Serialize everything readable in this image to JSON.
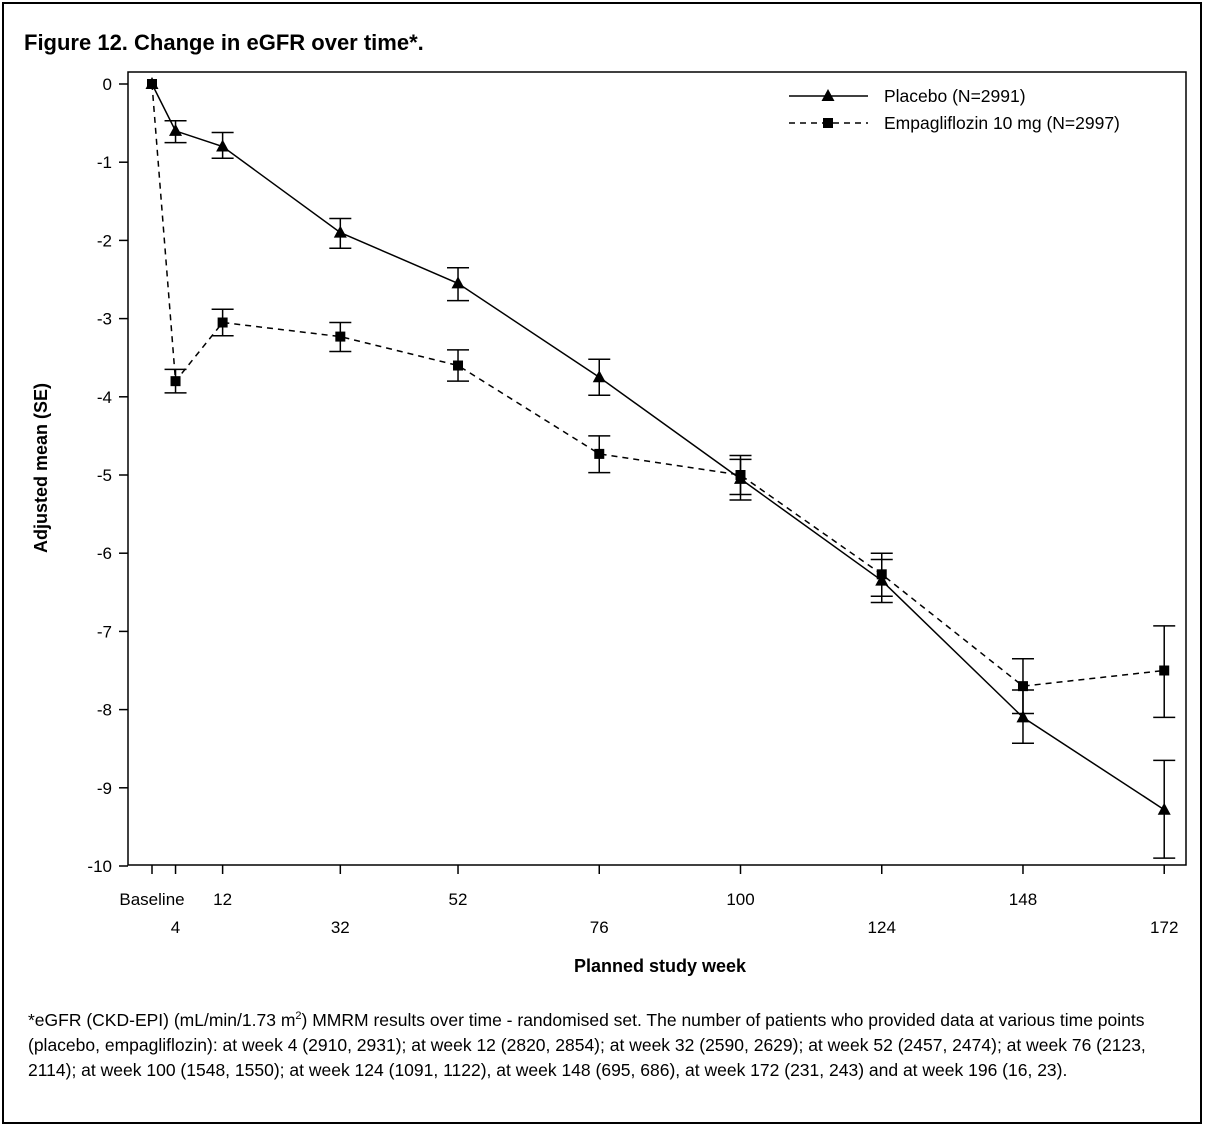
{
  "title": "Figure 12. Change in eGFR over time*.",
  "footnote": {
    "part1": "*eGFR (CKD-EPI) (mL/min/1.73 m",
    "sup": "2",
    "part2": ") MMRM results over time - randomised set. The number of patients who provided data at various time points (placebo, empagliflozin): at week 4 (2910, 2931); at week 12 (2820, 2854); at week 32 (2590, 2629); at week 52 (2457, 2474); at week 76 (2123, 2114); at week 100 (1548, 1550); at week 124 (1091, 1122), at week 148 (695, 686), at week 172 (231, 243) and at week 196 (16, 23)."
  },
  "chart_data": {
    "type": "line",
    "title": "Figure 12. Change in eGFR over time*.",
    "xlabel": "Planned study week",
    "ylabel": "Adjusted mean (SE)",
    "ylim": [
      -10,
      0
    ],
    "yticks": [
      "0",
      "-1",
      "-2",
      "-3",
      "-4",
      "-5",
      "-6",
      "-7",
      "-8",
      "-9",
      "-10"
    ],
    "xticks": [
      {
        "value": 0,
        "label": "Baseline",
        "row": 1
      },
      {
        "value": 4,
        "label": "4",
        "row": 2
      },
      {
        "value": 12,
        "label": "12",
        "row": 1
      },
      {
        "value": 32,
        "label": "32",
        "row": 2
      },
      {
        "value": 52,
        "label": "52",
        "row": 1
      },
      {
        "value": 76,
        "label": "76",
        "row": 2
      },
      {
        "value": 100,
        "label": "100",
        "row": 1
      },
      {
        "value": 124,
        "label": "124",
        "row": 2
      },
      {
        "value": 148,
        "label": "148",
        "row": 1
      },
      {
        "value": 172,
        "label": "172",
        "row": 2
      }
    ],
    "grid": false,
    "legend": "top-right",
    "series": [
      {
        "name": "Placebo (N=2991)",
        "marker": "triangle",
        "line": "solid",
        "points": [
          {
            "x": 0,
            "y": 0,
            "lo": 0,
            "hi": 0
          },
          {
            "x": 4,
            "y": -0.6,
            "lo": -0.75,
            "hi": -0.47
          },
          {
            "x": 12,
            "y": -0.8,
            "lo": -0.95,
            "hi": -0.62
          },
          {
            "x": 32,
            "y": -1.9,
            "lo": -2.1,
            "hi": -1.72
          },
          {
            "x": 52,
            "y": -2.55,
            "lo": -2.77,
            "hi": -2.35
          },
          {
            "x": 76,
            "y": -3.75,
            "lo": -3.98,
            "hi": -3.52
          },
          {
            "x": 100,
            "y": -5.05,
            "lo": -5.32,
            "hi": -4.8
          },
          {
            "x": 124,
            "y": -6.35,
            "lo": -6.63,
            "hi": -6.08
          },
          {
            "x": 148,
            "y": -8.1,
            "lo": -8.43,
            "hi": -7.75
          },
          {
            "x": 172,
            "y": -9.28,
            "lo": -9.9,
            "hi": -8.65
          }
        ]
      },
      {
        "name": "Empagliflozin 10 mg (N=2997)",
        "marker": "square",
        "line": "dashed",
        "points": [
          {
            "x": 0,
            "y": 0,
            "lo": 0,
            "hi": 0
          },
          {
            "x": 4,
            "y": -3.8,
            "lo": -3.95,
            "hi": -3.65
          },
          {
            "x": 12,
            "y": -3.05,
            "lo": -3.22,
            "hi": -2.88
          },
          {
            "x": 32,
            "y": -3.23,
            "lo": -3.42,
            "hi": -3.05
          },
          {
            "x": 52,
            "y": -3.6,
            "lo": -3.8,
            "hi": -3.4
          },
          {
            "x": 76,
            "y": -4.73,
            "lo": -4.97,
            "hi": -4.5
          },
          {
            "x": 100,
            "y": -5.0,
            "lo": -5.25,
            "hi": -4.75
          },
          {
            "x": 124,
            "y": -6.27,
            "lo": -6.55,
            "hi": -6.0
          },
          {
            "x": 148,
            "y": -7.7,
            "lo": -8.05,
            "hi": -7.35
          },
          {
            "x": 172,
            "y": -7.5,
            "lo": -8.1,
            "hi": -6.93
          }
        ]
      }
    ]
  }
}
